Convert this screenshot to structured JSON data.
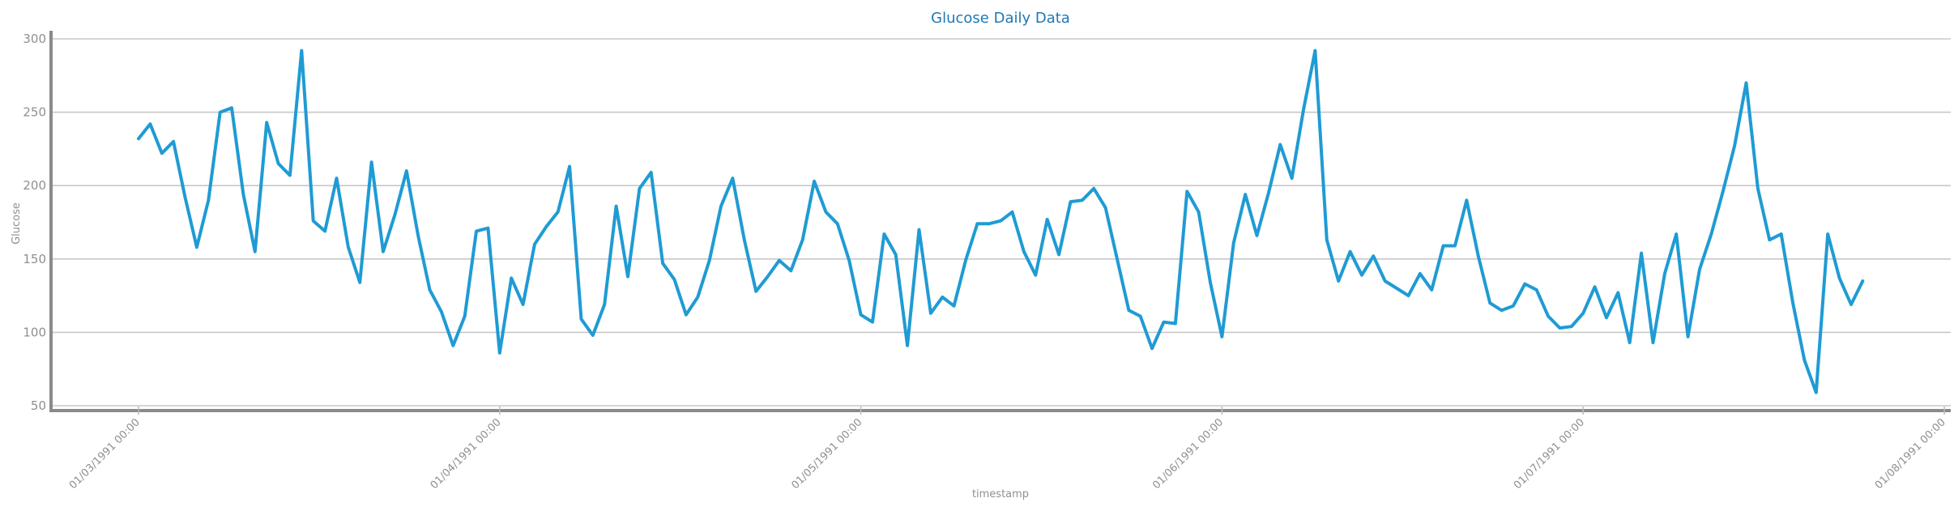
{
  "chart_data": {
    "type": "line",
    "title": "Glucose Daily Data",
    "xlabel": "timestamp",
    "ylabel": "Glucose",
    "ylim": [
      50,
      300
    ],
    "yticks": [
      50,
      100,
      150,
      200,
      250,
      300
    ],
    "x_tick_labels": [
      "01/03/1991 00:00",
      "01/04/1991 00:00",
      "01/05/1991 00:00",
      "01/06/1991 00:00",
      "01/07/1991 00:00",
      "01/08/1991 00:00"
    ],
    "grid": true,
    "colors": {
      "line": "#1f9bd4",
      "title": "#1f77b4",
      "axis": "#8a8a8a",
      "grid": "#c8c8c8"
    },
    "values": [
      232,
      242,
      222,
      230,
      192,
      158,
      190,
      250,
      253,
      194,
      155,
      243,
      215,
      207,
      292,
      176,
      169,
      205,
      158,
      134,
      216,
      155,
      180,
      210,
      166,
      129,
      114,
      91,
      111,
      169,
      171,
      86,
      137,
      119,
      160,
      172,
      182,
      213,
      109,
      98,
      119,
      186,
      138,
      198,
      209,
      147,
      136,
      112,
      124,
      149,
      186,
      205,
      163,
      128,
      138,
      149,
      142,
      163,
      203,
      182,
      174,
      149,
      112,
      107,
      167,
      153,
      91,
      170,
      113,
      124,
      118,
      149,
      174,
      174,
      176,
      182,
      155,
      139,
      177,
      153,
      189,
      190,
      198,
      185,
      150,
      115,
      111,
      89,
      107,
      106,
      196,
      182,
      134,
      97,
      161,
      194,
      166,
      195,
      228,
      205,
      252,
      292,
      163,
      135,
      155,
      139,
      152,
      135,
      130,
      125,
      140,
      129,
      159,
      159,
      190,
      152,
      120,
      115,
      118,
      133,
      129,
      111,
      103,
      104,
      113,
      131,
      110,
      127,
      93,
      154,
      93,
      140,
      167,
      97,
      143,
      167,
      196,
      227,
      270,
      198,
      163,
      167,
      120,
      81,
      59,
      167,
      137,
      119,
      135
    ]
  }
}
